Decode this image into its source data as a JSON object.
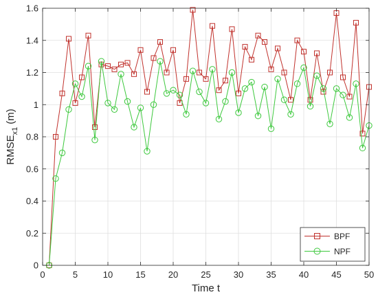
{
  "chart_data": {
    "type": "line",
    "xlabel": "Time t",
    "ylabel_main": "RMSE",
    "ylabel_sub": "x1",
    "ylabel_unit": "(m)",
    "xlim": [
      0,
      50
    ],
    "ylim": [
      0,
      1.6
    ],
    "xticks": [
      0,
      5,
      10,
      15,
      20,
      25,
      30,
      35,
      40,
      45,
      50
    ],
    "yticks": [
      0,
      0.2,
      0.4,
      0.6,
      0.8,
      1,
      1.2,
      1.4,
      1.6
    ],
    "grid": true,
    "legend_position": "bottom-right",
    "x": [
      1,
      2,
      3,
      4,
      5,
      6,
      7,
      8,
      9,
      10,
      11,
      12,
      13,
      14,
      15,
      16,
      17,
      18,
      19,
      20,
      21,
      22,
      23,
      24,
      25,
      26,
      27,
      28,
      29,
      30,
      31,
      32,
      33,
      34,
      35,
      36,
      37,
      38,
      39,
      40,
      41,
      42,
      43,
      44,
      45,
      46,
      47,
      48,
      49,
      50
    ],
    "series": [
      {
        "name": "BPF",
        "color": "#c0302b",
        "marker": "square",
        "values": [
          0,
          0.8,
          1.07,
          1.41,
          1.01,
          1.17,
          1.43,
          0.86,
          1.25,
          1.24,
          1.22,
          1.25,
          1.26,
          1.19,
          1.34,
          1.08,
          1.29,
          1.39,
          1.2,
          1.34,
          1.01,
          1.16,
          1.59,
          1.2,
          1.16,
          1.49,
          1.09,
          1.15,
          1.47,
          1.07,
          1.36,
          1.28,
          1.43,
          1.39,
          1.22,
          1.35,
          1.2,
          1.03,
          1.4,
          1.33,
          1.03,
          1.32,
          1.08,
          1.2,
          1.57,
          1.17,
          1.05,
          1.51,
          0.82,
          1.11
        ]
      },
      {
        "name": "NPF",
        "color": "#3cc83c",
        "marker": "circle",
        "values": [
          0,
          0.54,
          0.7,
          0.97,
          1.13,
          1.05,
          1.24,
          0.78,
          1.27,
          1.01,
          0.97,
          1.19,
          1.02,
          0.86,
          0.98,
          0.71,
          1.0,
          1.27,
          1.07,
          1.09,
          1.06,
          0.94,
          1.21,
          1.08,
          1.01,
          1.22,
          0.91,
          1.02,
          1.2,
          0.95,
          1.1,
          1.14,
          0.93,
          1.11,
          0.85,
          1.16,
          1.03,
          0.94,
          1.13,
          1.23,
          0.99,
          1.18,
          1.1,
          0.88,
          1.1,
          1.06,
          0.92,
          1.13,
          0.73,
          0.87
        ]
      }
    ]
  }
}
